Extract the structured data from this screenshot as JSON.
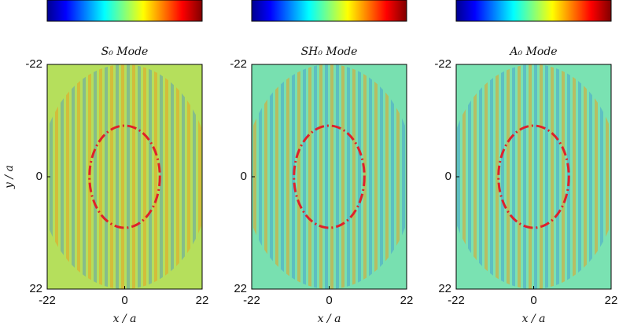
{
  "chart_data": [
    {
      "type": "field",
      "title": "S₀ Mode",
      "x_label": "x / a",
      "y_label": "y / a",
      "xlim": [
        -22,
        22
      ],
      "ylim": [
        22,
        -22
      ],
      "xticks": [
        -22,
        0,
        22
      ],
      "yticks": [
        -22,
        0,
        22
      ],
      "background_color": "#b5df5c",
      "circle": {
        "cx": 0,
        "cy": 0,
        "r": 10
      },
      "circle_color": "#e0202a"
    },
    {
      "type": "field",
      "title": "SH₀ Mode",
      "x_label": "x / a",
      "xlim": [
        -22,
        22
      ],
      "ylim": [
        22,
        -22
      ],
      "xticks": [
        -22,
        0,
        22
      ],
      "yticks": [
        -22,
        0,
        22
      ],
      "background_color": "#78e0b0",
      "circle": {
        "cx": 0,
        "cy": 0,
        "r": 10
      },
      "circle_color": "#e0202a"
    },
    {
      "type": "field",
      "title": "A₀ Mode",
      "x_label": "x / a",
      "xlim": [
        -22,
        22
      ],
      "ylim": [
        22,
        -22
      ],
      "xticks": [
        -22,
        0,
        22
      ],
      "yticks": [
        -22,
        0,
        22
      ],
      "background_color": "#7ae2b2",
      "circle": {
        "cx": 0,
        "cy": 0,
        "r": 10
      },
      "circle_color": "#e0202a"
    }
  ]
}
